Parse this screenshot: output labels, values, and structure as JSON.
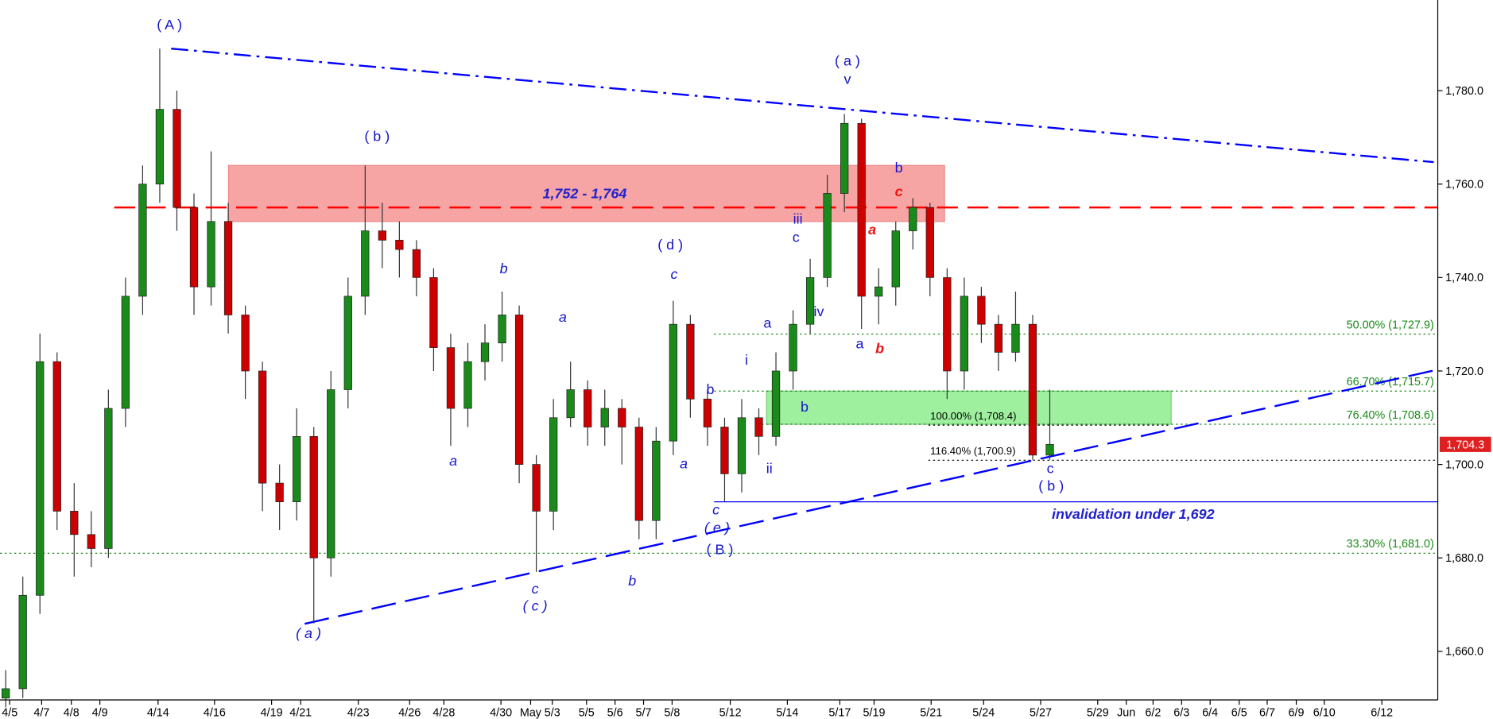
{
  "chart_data": {
    "type": "candlestick",
    "x": [
      1,
      4,
      7,
      10,
      13,
      16,
      19,
      22,
      25,
      28,
      31,
      34,
      37,
      40,
      43,
      46,
      49,
      52,
      55,
      58,
      61,
      64,
      67,
      70,
      73,
      76,
      79,
      82,
      85,
      88,
      91,
      94,
      97,
      100,
      103,
      106,
      109,
      112,
      115,
      118,
      121,
      124,
      127,
      130,
      133,
      136,
      139,
      142,
      145,
      148,
      151,
      154,
      157,
      160,
      163,
      166,
      169,
      172,
      175,
      178,
      181,
      184
    ],
    "open": [
      1650,
      1652,
      1672,
      1722,
      1690,
      1685,
      1682,
      1712,
      1736,
      1760,
      1776,
      1755,
      1738,
      1752,
      1732,
      1720,
      1696,
      1692,
      1706,
      1680,
      1716,
      1736,
      1750,
      1748,
      1746,
      1740,
      1725,
      1712,
      1722,
      1726,
      1732,
      1700,
      1690,
      1710,
      1716,
      1708,
      1712,
      1708,
      1688,
      1705,
      1730,
      1714,
      1708,
      1698,
      1710,
      1706,
      1720,
      1730,
      1740,
      1758,
      1773,
      1736,
      1738,
      1750,
      1755,
      1740,
      1720,
      1736,
      1730,
      1724,
      1730,
      1702
    ],
    "high": [
      1656,
      1676,
      1728,
      1724,
      1696,
      1690,
      1716,
      1740,
      1764,
      1789,
      1780,
      1758,
      1767,
      1756,
      1734,
      1722,
      1700,
      1712,
      1708,
      1720,
      1740,
      1764,
      1756,
      1752,
      1748,
      1742,
      1728,
      1726,
      1730,
      1737,
      1734,
      1702,
      1714,
      1722,
      1718,
      1716,
      1714,
      1710,
      1708,
      1735,
      1732,
      1716,
      1710,
      1714,
      1712,
      1724,
      1733,
      1744,
      1762,
      1775,
      1774,
      1742,
      1752,
      1757,
      1756,
      1742,
      1740,
      1738,
      1732,
      1737,
      1732,
      1716
    ],
    "low": [
      1648,
      1650,
      1668,
      1686,
      1676,
      1678,
      1680,
      1708,
      1732,
      1756,
      1750,
      1732,
      1734,
      1728,
      1714,
      1690,
      1686,
      1688,
      1666,
      1676,
      1712,
      1732,
      1742,
      1740,
      1736,
      1720,
      1704,
      1708,
      1718,
      1722,
      1696,
      1677,
      1686,
      1708,
      1704,
      1704,
      1700,
      1684,
      1684,
      1702,
      1710,
      1704,
      1692,
      1694,
      1702,
      1704,
      1716,
      1728,
      1738,
      1754,
      1729,
      1730,
      1734,
      1746,
      1736,
      1714,
      1716,
      1726,
      1720,
      1722,
      1701,
      1701
    ],
    "close": [
      1652,
      1672,
      1722,
      1690,
      1685,
      1682,
      1712,
      1736,
      1760,
      1776,
      1755,
      1738,
      1752,
      1732,
      1720,
      1696,
      1692,
      1706,
      1680,
      1716,
      1736,
      1750,
      1748,
      1746,
      1740,
      1725,
      1712,
      1722,
      1726,
      1732,
      1700,
      1690,
      1710,
      1716,
      1708,
      1712,
      1708,
      1688,
      1705,
      1730,
      1714,
      1708,
      1698,
      1710,
      1706,
      1720,
      1730,
      1740,
      1758,
      1773,
      1736,
      1738,
      1750,
      1755,
      1740,
      1720,
      1736,
      1730,
      1724,
      1730,
      1702,
      1704.3
    ],
    "up_color": "#1a8a1a",
    "down_color": "#cc0000",
    "xlim": [
      0,
      252
    ],
    "xticks": [
      {
        "value": 1.7,
        "label": "4/5"
      },
      {
        "value": 7.3,
        "label": "4/7"
      },
      {
        "value": 12.5,
        "label": "4/8"
      },
      {
        "value": 17.5,
        "label": "4/9"
      },
      {
        "value": 27.7,
        "label": "4/14"
      },
      {
        "value": 37.6,
        "label": "4/16"
      },
      {
        "value": 47.6,
        "label": "4/19"
      },
      {
        "value": 52.7,
        "label": "4/21"
      },
      {
        "value": 62.8,
        "label": "4/23"
      },
      {
        "value": 71.8,
        "label": "4/26"
      },
      {
        "value": 77.8,
        "label": "4/28"
      },
      {
        "value": 87.8,
        "label": "4/30"
      },
      {
        "value": 93,
        "label": "May"
      },
      {
        "value": 96.8,
        "label": "5/3"
      },
      {
        "value": 102.8,
        "label": "5/5"
      },
      {
        "value": 107.8,
        "label": "5/6"
      },
      {
        "value": 112.8,
        "label": "5/7"
      },
      {
        "value": 117.8,
        "label": "5/8"
      },
      {
        "value": 128,
        "label": "5/12"
      },
      {
        "value": 138,
        "label": "5/14"
      },
      {
        "value": 147.2,
        "label": "5/17"
      },
      {
        "value": 153.2,
        "label": "5/19"
      },
      {
        "value": 163.2,
        "label": "5/21"
      },
      {
        "value": 172.4,
        "label": "5/24"
      },
      {
        "value": 182.4,
        "label": "5/27"
      },
      {
        "value": 192.4,
        "label": "5/29"
      },
      {
        "value": 197.4,
        "label": "Jun"
      },
      {
        "value": 202.1,
        "label": "6/2"
      },
      {
        "value": 207.1,
        "label": "6/3"
      },
      {
        "value": 212.1,
        "label": "6/4"
      },
      {
        "value": 217.2,
        "label": "6/5"
      },
      {
        "value": 222.1,
        "label": "6/7"
      },
      {
        "value": 227.2,
        "label": "6/9"
      },
      {
        "value": 232.1,
        "label": "6/10"
      },
      {
        "value": 242.2,
        "label": "6/12"
      }
    ],
    "ylim": [
      1649.6,
      1799.4
    ],
    "yticks": [
      {
        "value": 1660,
        "label": "1,660.0"
      },
      {
        "value": 1680,
        "label": "1,680.0"
      },
      {
        "value": 1700,
        "label": "1,700.0"
      },
      {
        "value": 1720,
        "label": "1,720.0"
      },
      {
        "value": 1740,
        "label": "1,740.0"
      },
      {
        "value": 1760,
        "label": "1,760.0"
      },
      {
        "value": 1780,
        "label": "1,780.0"
      }
    ],
    "last_price": {
      "value": 1704.3,
      "label": "1,704.3",
      "color": "#e02020"
    },
    "zones": [
      {
        "range": [
          1752,
          1764
        ],
        "label": "1,752 - 1,764",
        "color": "#f6a4a4"
      },
      {
        "range": [
          1708.6,
          1715.7
        ],
        "color": "#9ef09e"
      }
    ],
    "levels": [
      {
        "value": 1755,
        "color": "#ff0000",
        "style": "dashed"
      },
      {
        "value": 1727.9,
        "label": "50.00% (1,727.9)",
        "color": "#1a8a1a",
        "style": "dotted"
      },
      {
        "value": 1715.7,
        "label": "66.70% (1,715.7)",
        "color": "#1a8a1a",
        "style": "dotted"
      },
      {
        "value": 1708.6,
        "label": "76.40% (1,708.6)",
        "color": "#1a8a1a",
        "style": "dotted"
      },
      {
        "value": 1681,
        "label": "33.30% (1,681.0)",
        "color": "#1a8a1a",
        "style": "dotted"
      },
      {
        "value": 1708.4,
        "label": "100.00% (1,708.4)",
        "color": "#000000",
        "style": "dotted"
      },
      {
        "value": 1700.9,
        "label": "116.40% (1,700.9)",
        "color": "#000000",
        "style": "dotted"
      },
      {
        "value": 1692,
        "label": "invalidation under 1,692",
        "color": "#0000ff",
        "style": "solid"
      }
    ],
    "trendlines": [
      {
        "x": [
          30,
          251.3
        ],
        "y": [
          1789,
          1764.7
        ],
        "color": "#0000ff",
        "style": "dashdot"
      },
      {
        "x": [
          53.4,
          252
        ],
        "y": [
          1665.9,
          1720.3
        ],
        "color": "#0000ff",
        "style": "longdash"
      }
    ],
    "annotations": [
      "( A )",
      "( b )",
      "( d )",
      "c",
      "b",
      "a",
      "a",
      "a",
      "c",
      "( c )",
      "b",
      "( a )",
      "c",
      "( e )",
      "( B )",
      "( a )",
      "v",
      "iii",
      "c",
      "iv",
      "a",
      "i",
      "b",
      "b",
      "ii",
      "b",
      "c",
      "a",
      "a",
      "b",
      "c",
      "( b )"
    ]
  }
}
